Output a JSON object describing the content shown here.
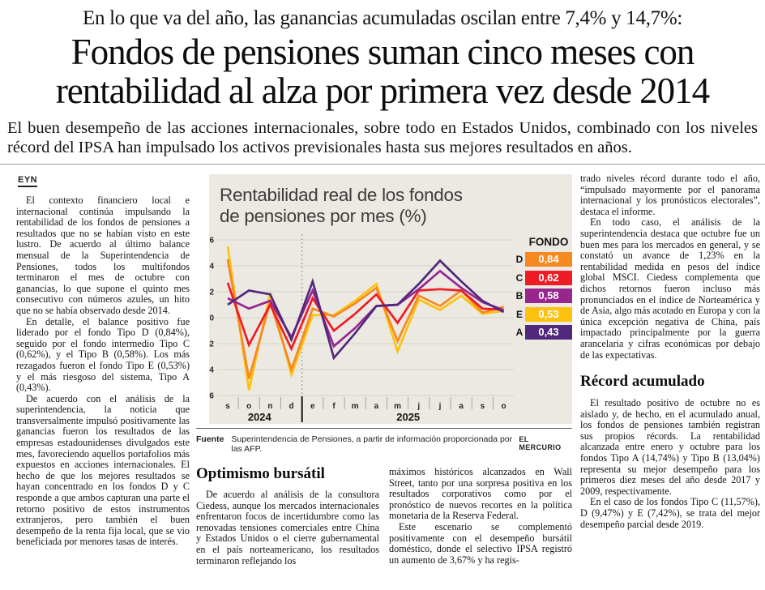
{
  "header": {
    "kicker": "En lo que va del año, las ganancias acumuladas oscilan entre 7,4% y 14,7%:",
    "headline": "Fondos de pensiones suman cinco meses con rentabilidad al alza por primera vez desde 2014",
    "deck": "El buen desempeño de las acciones internacionales, sobre todo en Estados Unidos, combinado con los niveles récord del IPSA han impulsado los activos previsionales hasta sus mejores resultados en años."
  },
  "byline": "EYN",
  "left_column": {
    "paragraphs": [
      "El contexto financiero local e internacional continúa impulsando la rentabilidad de los fondos de pensiones a resultados que no se habían visto en este lustro. De acuerdo al último balance mensual de la Superintendencia de Pensiones, todos los multifondos terminaron el mes de octubre con ganancias, lo que supone el quinto mes consecutivo con números azules, un hito que no se había observado desde 2014.",
      "En detalle, el balance positivo fue liderado por el fondo Tipo D (0,84%), seguido por el fondo intermedio Tipo C (0,62%), y el Tipo B (0,58%). Los más rezagados fueron el fondo Tipo E (0,53%) y el más riesgoso del sistema, Tipo A (0,43%).",
      "De acuerdo con el análisis de la superintendencia, la noticia que transversalmente impulsó positivamente las ganancias fueron los resultados de las empresas estadounidenses divulgados este mes, favoreciendo aquellos portafolios más expuestos en acciones internacionales. El hecho de que los mejores resultados se hayan concentrado en los fondos D y C responde a que ambos capturan una parte el retorno positivo de estos instrumentos extranjeros, pero también el buen desempeño de la renta fija local, que se vio beneficiada por menores tasas de interés."
    ]
  },
  "bottom_section": {
    "heading": "Optimismo bursátil",
    "col1_paragraphs": [
      "De acuerdo al análisis de la consultora Ciedess, aunque los mercados internacionales enfrentaron focos de incertidumbre como las renovadas tensiones comerciales entre China y Estados Unidos o el cierre gubernamental en el país norteamericano, los resultados terminaron reflejando los"
    ],
    "col2_paragraphs": [
      "máximos históricos alcanzados en Wall Street, tanto por una sorpresa positiva en los resultados corporativos como por el pronóstico de nuevos recortes en la política monetaria de la Reserva Federal.",
      "Este escenario se complementó positivamente con el desempeño bursátil doméstico, donde el selectivo IPSA registró un aumento de 3,67% y ha regis-"
    ]
  },
  "right_column": {
    "paragraphs_top": [
      "trado niveles récord durante todo el año, “impulsado mayormente por el panorama internacional y los pronósticos electorales”, destaca el informe.",
      "En todo caso, el análisis de la superintendencia destaca que octubre fue un buen mes para los mercados en general, y se constató un avance de 1,23% en la rentabilidad medida en pesos del índice global MSCI. Ciedess complementa que dichos retornos fueron incluso más pronunciados en el índice de Norteamérica y de Asia, algo más acotado en Europa y con la única excepción negativa de China, país impactado principalmente por la guerra arancelaria y cifras económicas por debajo de las expectativas."
    ],
    "heading": "Récord acumulado",
    "paragraphs_bottom": [
      "El resultado positivo de octubre no es aislado y, de hecho, en el acumulado anual, los fondos de pensiones también registran sus propios récords. La rentabilidad alcanzada entre enero y octubre para los fondos Tipo A (14,74%) y Tipo B (13,04%) representa su mejor desempeño para los primeros diez meses del año desde 2017 y 2009, respectivamente.",
      "En el caso de los fondos Tipo C (11,57%), D (9,47%) y E (7,42%), se trata del mejor desempeño parcial desde 2019."
    ]
  },
  "chart": {
    "title_line1": "Rentabilidad real de los fondos",
    "title_line2": "de pensiones por mes (%)",
    "legend_title": "FONDO",
    "source_label": "Fuente",
    "source_text": "Superintendencia de Pensiones, a partir de información proporcionada por las AFP.",
    "credit": "EL MERCURIO"
  },
  "chart_data": {
    "type": "line",
    "title": "Rentabilidad real de los fondos de pensiones por mes (%)",
    "x": [
      "s",
      "o",
      "n",
      "d",
      "e",
      "f",
      "m",
      "a",
      "m",
      "j",
      "j",
      "a",
      "s",
      "o"
    ],
    "year_labels": [
      {
        "label": "2024",
        "months": 4
      },
      {
        "label": "2025",
        "months": 10
      }
    ],
    "ylim": [
      -6,
      6
    ],
    "yticks": [
      6,
      4,
      2,
      0,
      -2,
      -4,
      -6
    ],
    "grid": true,
    "legend_position": "right",
    "draw_order": [
      "E",
      "D",
      "C",
      "B",
      "A"
    ],
    "series": [
      {
        "name": "D",
        "color": "#F6891F",
        "latest_label": "0,84",
        "values": [
          4.5,
          -4.7,
          1.2,
          -4.0,
          0.7,
          0.1,
          1.1,
          2.3,
          -1.8,
          1.7,
          0.9,
          2.1,
          0.4,
          0.84
        ]
      },
      {
        "name": "C",
        "color": "#EE1C25",
        "latest_label": "0,62",
        "values": [
          2.7,
          -2.1,
          1.0,
          -2.4,
          1.5,
          -1.0,
          0.3,
          1.8,
          -0.4,
          2.1,
          2.2,
          2.1,
          0.7,
          0.62
        ]
      },
      {
        "name": "B",
        "color": "#97268D",
        "latest_label": "0,58",
        "values": [
          1.5,
          0.7,
          1.3,
          -1.5,
          2.1,
          -2.2,
          -0.8,
          0.9,
          1.0,
          2.2,
          3.6,
          2.3,
          1.2,
          0.58
        ]
      },
      {
        "name": "E",
        "color": "#FDC110",
        "latest_label": "0,53",
        "values": [
          5.5,
          -5.6,
          1.9,
          -4.4,
          0.2,
          0.2,
          1.3,
          2.6,
          -2.6,
          1.4,
          0.6,
          1.7,
          0.3,
          0.53
        ]
      },
      {
        "name": "A",
        "color": "#50287D",
        "latest_label": "0,43",
        "values": [
          1.0,
          2.1,
          1.8,
          -1.7,
          2.8,
          -3.1,
          -1.2,
          0.9,
          1.0,
          2.6,
          4.4,
          2.8,
          1.3,
          0.43
        ]
      }
    ]
  }
}
